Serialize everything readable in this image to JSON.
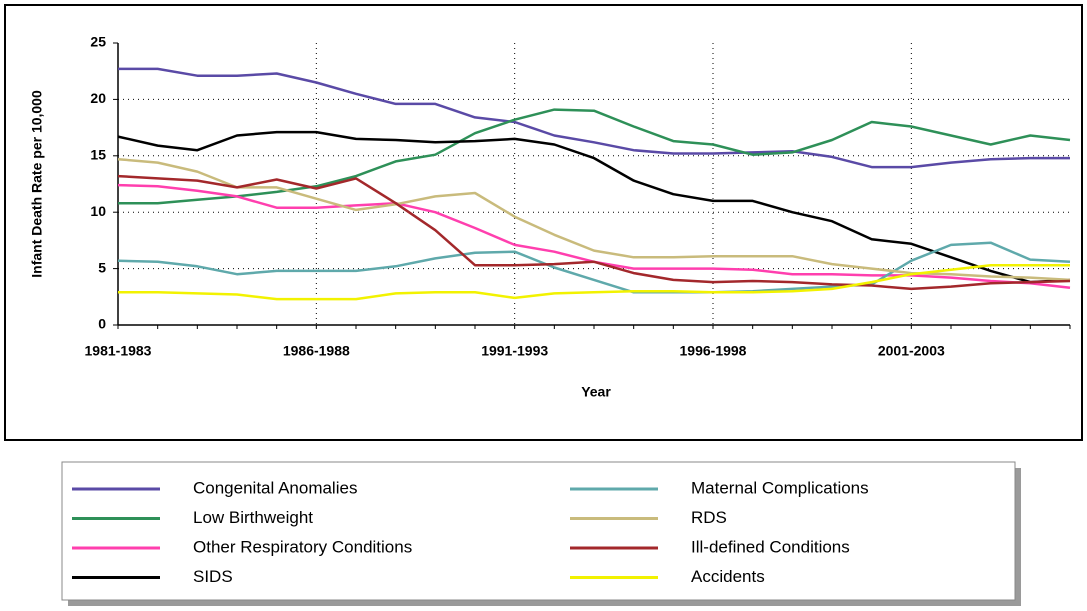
{
  "chart_data": {
    "type": "line",
    "x_label": "Year",
    "y_label": "Infant Death Rate per 10,000",
    "categories": [
      "1981-1983",
      null,
      null,
      null,
      null,
      "1986-1988",
      null,
      null,
      null,
      null,
      "1991-1993",
      null,
      null,
      null,
      null,
      "1996-1998",
      null,
      null,
      null,
      null,
      "2001-2003",
      null,
      null,
      null,
      null
    ],
    "ylim": [
      0,
      25
    ],
    "yticks": [
      0,
      5,
      10,
      15,
      20,
      25
    ],
    "grid": true,
    "series": [
      {
        "name": "Congenital Anomalies",
        "color": "#5a4aa6",
        "values": [
          22.7,
          22.7,
          22.1,
          22.1,
          22.3,
          21.5,
          20.5,
          19.6,
          19.6,
          18.4,
          18.0,
          16.8,
          16.2,
          15.5,
          15.2,
          15.2,
          15.3,
          15.4,
          14.9,
          14.0,
          14.0,
          14.4,
          14.7,
          14.8,
          14.8
        ]
      },
      {
        "name": "Low Birthweight",
        "color": "#2e9058",
        "values": [
          10.8,
          10.8,
          11.1,
          11.4,
          11.8,
          12.3,
          13.2,
          14.5,
          15.1,
          17.0,
          18.2,
          19.1,
          19.0,
          17.6,
          16.3,
          16.0,
          15.1,
          15.3,
          16.4,
          18.0,
          17.6,
          16.8,
          16.0,
          16.8,
          16.4
        ]
      },
      {
        "name": "Other Respiratory Conditions",
        "color": "#ff3fae",
        "values": [
          12.4,
          12.3,
          11.9,
          11.4,
          10.4,
          10.4,
          10.6,
          10.8,
          10.0,
          8.6,
          7.1,
          6.5,
          5.6,
          5.0,
          5.0,
          5.0,
          4.9,
          4.5,
          4.5,
          4.4,
          4.4,
          4.2,
          3.9,
          3.7,
          3.3
        ]
      },
      {
        "name": "SIDS",
        "color": "#000000",
        "values": [
          16.7,
          15.9,
          15.5,
          16.8,
          17.1,
          17.1,
          16.5,
          16.4,
          16.2,
          16.3,
          16.5,
          16.0,
          14.8,
          12.8,
          11.6,
          11.0,
          11.0,
          10.0,
          9.2,
          7.6,
          7.2,
          6.0,
          4.8,
          3.8,
          4.0
        ]
      },
      {
        "name": "Maternal Complications",
        "color": "#5fa9ab",
        "values": [
          5.7,
          5.6,
          5.2,
          4.5,
          4.8,
          4.8,
          4.8,
          5.2,
          5.9,
          6.4,
          6.5,
          5.1,
          4.0,
          2.9,
          2.9,
          2.9,
          3.0,
          3.2,
          3.4,
          3.6,
          5.7,
          7.1,
          7.3,
          5.8,
          5.6
        ]
      },
      {
        "name": "RDS",
        "color": "#c9bb7c",
        "values": [
          14.7,
          14.4,
          13.6,
          12.2,
          12.2,
          11.2,
          10.2,
          10.7,
          11.4,
          11.7,
          9.6,
          8.0,
          6.6,
          6.0,
          6.0,
          6.1,
          6.1,
          6.1,
          5.4,
          5.0,
          4.6,
          4.5,
          4.3,
          4.2,
          4.0
        ]
      },
      {
        "name": "Ill-defined Conditions",
        "color": "#a3282b",
        "values": [
          13.2,
          13.0,
          12.8,
          12.2,
          12.9,
          12.1,
          13.0,
          10.8,
          8.4,
          5.3,
          5.3,
          5.4,
          5.6,
          4.6,
          4.0,
          3.8,
          3.9,
          3.8,
          3.6,
          3.5,
          3.2,
          3.4,
          3.7,
          3.8,
          3.9
        ]
      },
      {
        "name": "Accidents",
        "color": "#f2f200",
        "values": [
          2.9,
          2.9,
          2.8,
          2.7,
          2.3,
          2.3,
          2.3,
          2.8,
          2.9,
          2.9,
          2.4,
          2.8,
          2.9,
          3.0,
          3.0,
          2.9,
          2.9,
          3.0,
          3.2,
          3.8,
          4.5,
          4.9,
          5.3,
          5.3,
          5.3
        ]
      }
    ]
  }
}
